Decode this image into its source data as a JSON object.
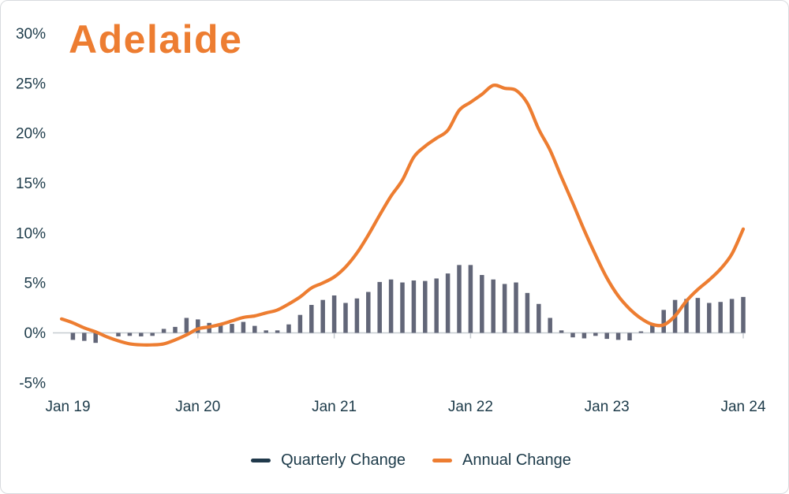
{
  "title": "Adelaide",
  "colors": {
    "accent_orange": "#ED7D31",
    "bar": "#626678",
    "text": "#1C3A49",
    "axis_line": "#C6CBD0"
  },
  "legend": {
    "quarterly": "Quarterly Change",
    "annual": "Annual Change"
  },
  "chart_data": {
    "type": "combo",
    "title": "Adelaide",
    "x_unit": "month",
    "x_tick_labels": [
      "Jan 19",
      "Jan 20",
      "Jan 21",
      "Jan 22",
      "Jan 23",
      "Jan 24"
    ],
    "x_tick_month_indices": [
      0,
      12,
      24,
      36,
      48,
      60
    ],
    "y_tick_labels": [
      "-5%",
      "0%",
      "5%",
      "10%",
      "15%",
      "20%",
      "25%",
      "30%"
    ],
    "y_tick_values": [
      -5,
      0,
      5,
      10,
      15,
      20,
      25,
      30
    ],
    "ylim": [
      -5.5,
      31
    ],
    "legend_position": "bottom",
    "grid": false,
    "months": [
      "2019-01",
      "2019-02",
      "2019-03",
      "2019-04",
      "2019-05",
      "2019-06",
      "2019-07",
      "2019-08",
      "2019-09",
      "2019-10",
      "2019-11",
      "2019-12",
      "2020-01",
      "2020-02",
      "2020-03",
      "2020-04",
      "2020-05",
      "2020-06",
      "2020-07",
      "2020-08",
      "2020-09",
      "2020-10",
      "2020-11",
      "2020-12",
      "2021-01",
      "2021-02",
      "2021-03",
      "2021-04",
      "2021-05",
      "2021-06",
      "2021-07",
      "2021-08",
      "2021-09",
      "2021-10",
      "2021-11",
      "2021-12",
      "2022-01",
      "2022-02",
      "2022-03",
      "2022-04",
      "2022-05",
      "2022-06",
      "2022-07",
      "2022-08",
      "2022-09",
      "2022-10",
      "2022-11",
      "2022-12",
      "2023-01",
      "2023-02",
      "2023-03",
      "2023-04",
      "2023-05",
      "2023-06",
      "2023-07",
      "2023-08",
      "2023-09",
      "2023-10",
      "2023-11",
      "2023-12",
      "2024-01"
    ],
    "series": [
      {
        "name": "Quarterly Change",
        "type": "bar",
        "unit": "%",
        "values": [
          0.0,
          -0.7,
          -0.8,
          -1.0,
          -0.05,
          -0.35,
          -0.3,
          -0.35,
          -0.3,
          0.4,
          0.6,
          1.5,
          1.35,
          1.0,
          0.8,
          0.9,
          1.1,
          0.7,
          0.25,
          0.25,
          0.85,
          1.8,
          2.8,
          3.3,
          3.75,
          3.0,
          3.45,
          4.1,
          5.1,
          5.35,
          5.05,
          5.25,
          5.2,
          5.45,
          5.95,
          6.8,
          6.8,
          5.8,
          5.35,
          4.9,
          5.05,
          4.0,
          2.9,
          1.5,
          0.25,
          -0.45,
          -0.55,
          -0.3,
          -0.6,
          -0.7,
          -0.75,
          0.15,
          0.9,
          2.3,
          3.3,
          3.4,
          3.5,
          3.0,
          3.1,
          3.4,
          3.6
        ]
      },
      {
        "name": "Annual Change",
        "type": "line",
        "unit": "%",
        "values": [
          1.4,
          1.0,
          0.5,
          0.1,
          -0.4,
          -0.8,
          -1.1,
          -1.2,
          -1.2,
          -1.1,
          -0.7,
          -0.2,
          0.4,
          0.6,
          0.85,
          1.2,
          1.55,
          1.7,
          2.0,
          2.3,
          2.9,
          3.6,
          4.5,
          5.0,
          5.6,
          6.6,
          8.0,
          9.8,
          11.8,
          13.7,
          15.3,
          17.6,
          18.7,
          19.5,
          20.3,
          22.3,
          23.1,
          23.9,
          24.8,
          24.5,
          24.3,
          23.0,
          20.4,
          18.3,
          15.6,
          13.0,
          10.3,
          7.8,
          5.5,
          3.7,
          2.4,
          1.45,
          0.85,
          0.8,
          1.7,
          3.2,
          4.35,
          5.3,
          6.4,
          7.9,
          10.4
        ]
      }
    ]
  }
}
